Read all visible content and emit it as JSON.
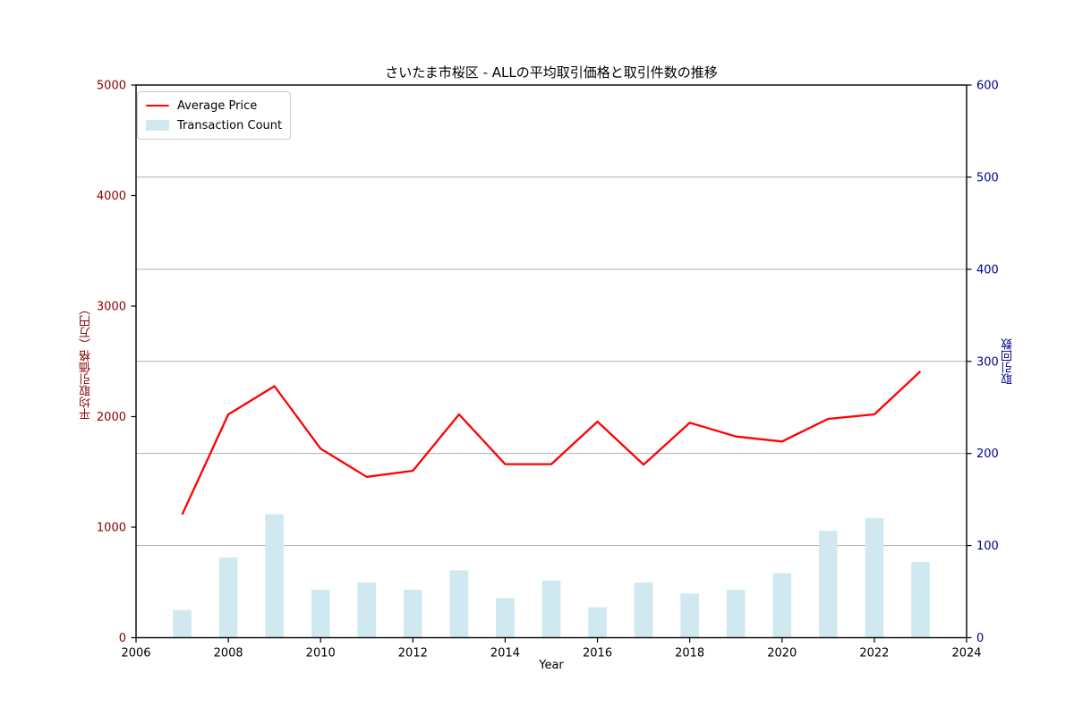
{
  "colors": {
    "line": "#ff0000",
    "bar": "#d0e8f0",
    "left_axis_text": "#8b0000",
    "right_axis_text": "#00008b",
    "grid": "#b0b0b0",
    "spine": "#000000",
    "tick_text": "#000000",
    "legend_border": "#cccccc",
    "background": "#ffffff"
  },
  "chart_data": {
    "type": "line+bar",
    "title": "さいたま市桜区 - ALLの平均取引価格と取引件数の推移",
    "xlabel": "Year",
    "ylabel_left": "平均取引価格（万円）",
    "ylabel_right": "取引回数",
    "x": [
      2007,
      2008,
      2009,
      2010,
      2011,
      2012,
      2013,
      2014,
      2015,
      2016,
      2017,
      2018,
      2019,
      2020,
      2021,
      2022,
      2023
    ],
    "series": [
      {
        "name": "Average Price",
        "type": "line",
        "axis": "left",
        "color": "#ff0000",
        "values": [
          1115,
          2020,
          2275,
          1710,
          1455,
          1510,
          2020,
          1570,
          1570,
          1955,
          1565,
          1945,
          1820,
          1775,
          1980,
          2020,
          2410
        ]
      },
      {
        "name": "Transaction Count",
        "type": "bar",
        "axis": "right",
        "color": "#d0e8f0",
        "values": [
          30,
          87,
          134,
          52,
          60,
          52,
          73,
          43,
          62,
          33,
          60,
          48,
          52,
          70,
          116,
          130,
          82
        ]
      }
    ],
    "xlim": [
      2006,
      2024
    ],
    "ylim_left": [
      0,
      5000
    ],
    "ylim_right": [
      0,
      600
    ],
    "x_ticks": [
      2006,
      2008,
      2010,
      2012,
      2014,
      2016,
      2018,
      2020,
      2022,
      2024
    ],
    "y_left_ticks": [
      0,
      1000,
      2000,
      3000,
      4000,
      5000
    ],
    "y_right_ticks": [
      0,
      100,
      200,
      300,
      400,
      500,
      600
    ],
    "grid": "horizontal lines at right-axis ticks",
    "legend_position": "upper left"
  }
}
